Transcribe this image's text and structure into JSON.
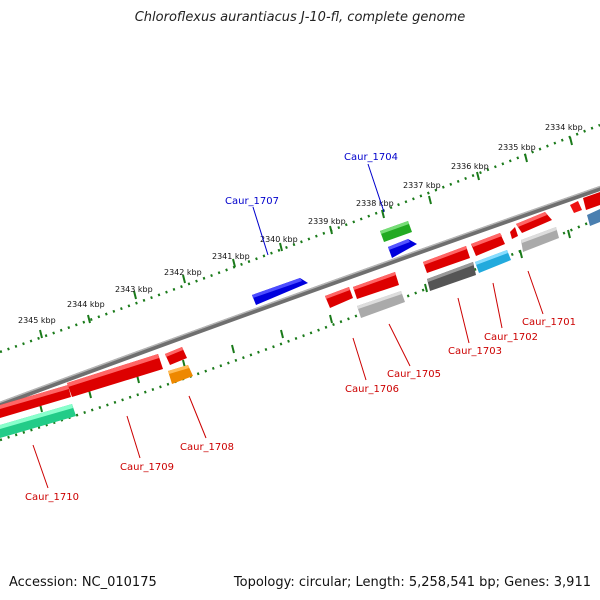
{
  "title": "Chloroflexus aurantiacus J-10-fl, complete genome",
  "footer": {
    "accession": "Accession: NC_010175",
    "topology": "Topology: circular; Length: 5,258,541 bp; Genes: 3,911"
  },
  "colors": {
    "tick_dots": "#1a7a1a",
    "label_blue": "#0000cc",
    "label_red": "#cc0000",
    "backbone": "#777777"
  },
  "scale_ticks": [
    {
      "label": "2334 kbp"
    },
    {
      "label": "2335 kbp"
    },
    {
      "label": "2336 kbp"
    },
    {
      "label": "2337 kbp"
    },
    {
      "label": "2338 kbp"
    },
    {
      "label": "2339 kbp"
    },
    {
      "label": "2340 kbp"
    },
    {
      "label": "2341 kbp"
    },
    {
      "label": "2342 kbp"
    },
    {
      "label": "2343 kbp"
    },
    {
      "label": "2344 kbp"
    },
    {
      "label": "2345 kbp"
    }
  ],
  "gene_labels": [
    {
      "text": "Caur_1704",
      "strand": "forward"
    },
    {
      "text": "Caur_1707",
      "strand": "forward"
    },
    {
      "text": "Caur_1701",
      "strand": "reverse"
    },
    {
      "text": "Caur_1702",
      "strand": "reverse"
    },
    {
      "text": "Caur_1703",
      "strand": "reverse"
    },
    {
      "text": "Caur_1705",
      "strand": "reverse"
    },
    {
      "text": "Caur_1706",
      "strand": "reverse"
    },
    {
      "text": "Caur_1708",
      "strand": "reverse"
    },
    {
      "text": "Caur_1709",
      "strand": "reverse"
    },
    {
      "text": "Caur_1710",
      "strand": "reverse"
    }
  ]
}
